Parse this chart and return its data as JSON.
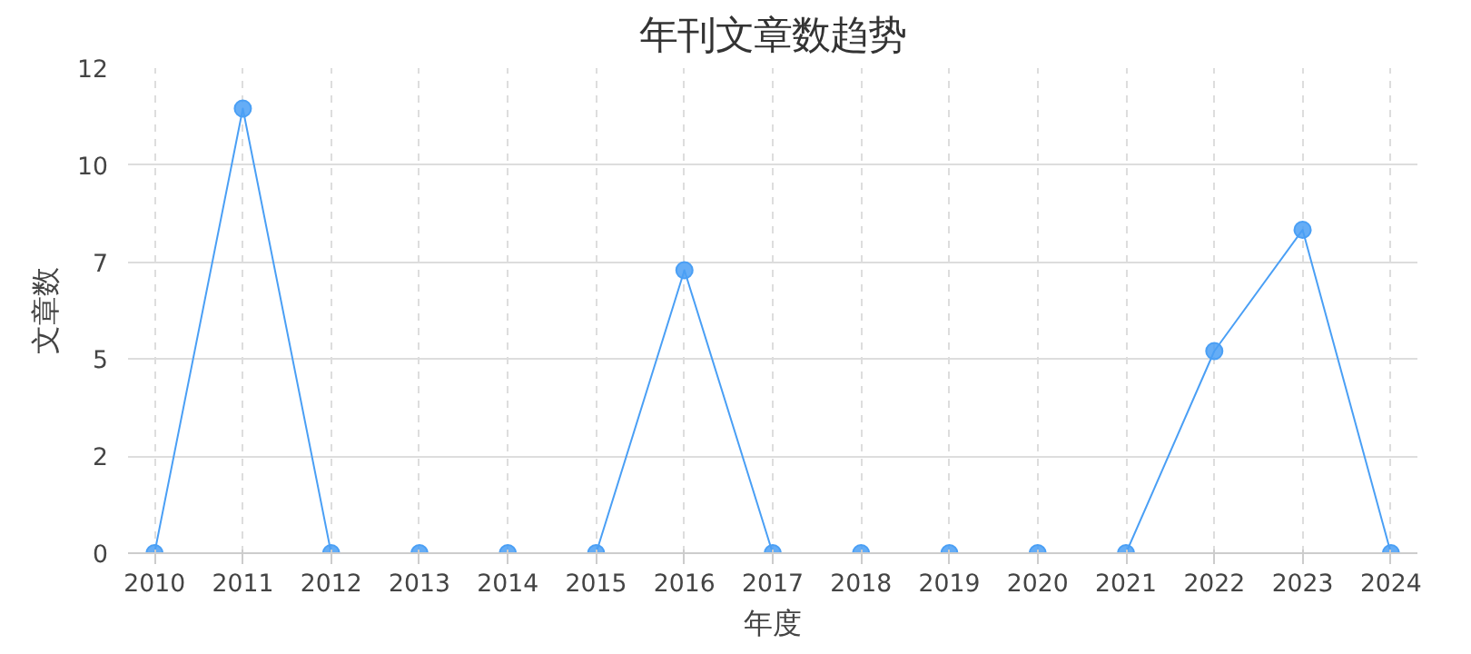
{
  "chart_data": {
    "type": "line",
    "title": "年刊文章数趋势",
    "xlabel": "年度",
    "ylabel": "文章数",
    "x": [
      2010,
      2011,
      2012,
      2013,
      2014,
      2015,
      2016,
      2017,
      2018,
      2019,
      2020,
      2021,
      2022,
      2023,
      2024
    ],
    "series": [
      {
        "color": "#4a9ff5",
        "values": [
          0,
          11,
          0,
          0,
          0,
          0,
          7,
          0,
          0,
          0,
          0,
          0,
          5,
          8,
          0
        ]
      }
    ],
    "xlim": [
      2009.7,
      2024.3
    ],
    "xticks": [
      2010,
      2011,
      2012,
      2013,
      2014,
      2015,
      2016,
      2017,
      2018,
      2019,
      2020,
      2021,
      2022,
      2023,
      2024
    ],
    "ylim": [
      0,
      12
    ],
    "yticks": [
      0,
      {
        "value": 2.4,
        "label": "2"
      },
      {
        "value": 4.8,
        "label": "5"
      },
      {
        "value": 7.2,
        "label": "7"
      },
      {
        "value": 9.6,
        "label": "10"
      },
      12
    ],
    "grid": true,
    "marker": "circle",
    "line_style": "solid"
  }
}
